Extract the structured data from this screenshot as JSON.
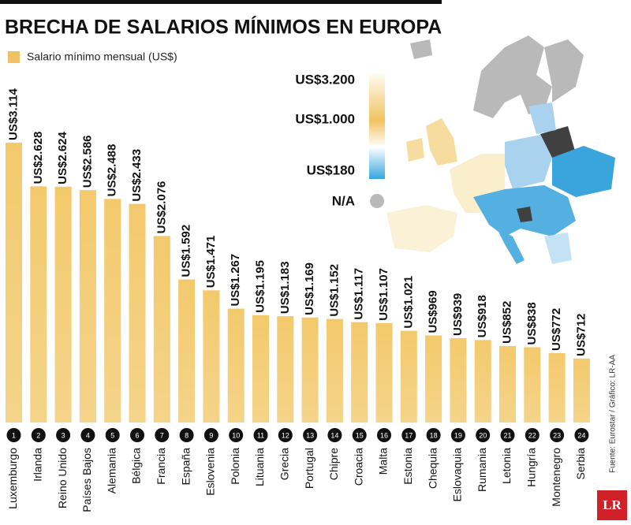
{
  "chart_data": {
    "type": "bar",
    "title": "BRECHA DE SALARIOS MÍNIMOS EN EUROPA",
    "series_name": "Salario mínimo mensual (US$)",
    "color": "#f1c262",
    "categories": [
      "Luxemburgo",
      "Irlanda",
      "Reino Unido",
      "Países Bajos",
      "Alemania",
      "Bélgica",
      "Francia",
      "España",
      "Eslovenia",
      "Polonia",
      "Lituania",
      "Grecia",
      "Portugal",
      "Chipre",
      "Croacia",
      "Malta",
      "Estonia",
      "Chequia",
      "Eslovaquia",
      "Rumania",
      "Letonia",
      "Hungría",
      "Montenegro",
      "Serbia"
    ],
    "ranks": [
      1,
      2,
      3,
      4,
      5,
      6,
      7,
      8,
      9,
      10,
      11,
      12,
      13,
      14,
      15,
      16,
      17,
      18,
      19,
      20,
      21,
      22,
      23,
      24
    ],
    "values": [
      3114,
      2628,
      2624,
      2586,
      2488,
      2433,
      2076,
      1592,
      1471,
      1267,
      1195,
      1183,
      1169,
      1152,
      1117,
      1107,
      1021,
      969,
      939,
      918,
      852,
      838,
      772,
      712
    ],
    "value_labels": [
      "US$3.114",
      "US$2.628",
      "US$2.624",
      "US$2.586",
      "US$2.488",
      "US$2.433",
      "US$2.076",
      "US$1.592",
      "US$1.471",
      "US$1.267",
      "US$1.195",
      "US$1.183",
      "US$1.169",
      "US$1.152",
      "US$1.117",
      "US$1.107",
      "US$1.021",
      "US$969",
      "US$939",
      "US$918",
      "US$852",
      "US$838",
      "US$772",
      "US$712"
    ]
  },
  "map_legend": {
    "labels": [
      "US$3.200",
      "US$1.000",
      "US$180",
      "N/A"
    ]
  },
  "source": "Fuente: Eurostar / Gráfico: LR-AA",
  "logo": "LR"
}
